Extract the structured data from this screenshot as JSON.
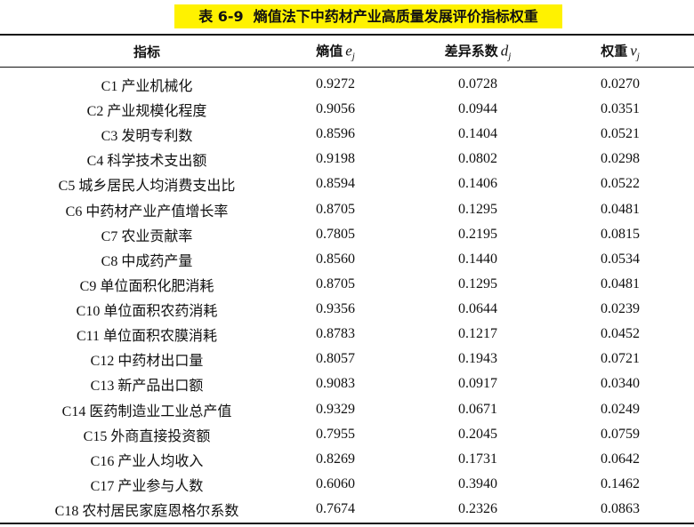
{
  "table": {
    "title": "表 6-9  熵值法下中药材产业高质量发展评价指标权重",
    "header": [
      {
        "text": "指标"
      },
      {
        "text": "熵值",
        "var": "e",
        "sub": "j"
      },
      {
        "text": "差异系数",
        "var": "d",
        "sub": "j"
      },
      {
        "text": "权重",
        "var": "v",
        "sub": "j"
      }
    ],
    "rows": [
      [
        "C1 产业机械化",
        "0.9272",
        "0.0728",
        "0.0270"
      ],
      [
        "C2 产业规模化程度",
        "0.9056",
        "0.0944",
        "0.0351"
      ],
      [
        "C3 发明专利数",
        "0.8596",
        "0.1404",
        "0.0521"
      ],
      [
        "C4 科学技术支出额",
        "0.9198",
        "0.0802",
        "0.0298"
      ],
      [
        "C5 城乡居民人均消费支出比",
        "0.8594",
        "0.1406",
        "0.0522"
      ],
      [
        "C6 中药材产业产值增长率",
        "0.8705",
        "0.1295",
        "0.0481"
      ],
      [
        "C7 农业贡献率",
        "0.7805",
        "0.2195",
        "0.0815"
      ],
      [
        "C8 中成药产量",
        "0.8560",
        "0.1440",
        "0.0534"
      ],
      [
        "C9 单位面积化肥消耗",
        "0.8705",
        "0.1295",
        "0.0481"
      ],
      [
        "C10 单位面积农药消耗",
        "0.9356",
        "0.0644",
        "0.0239"
      ],
      [
        "C11 单位面积农膜消耗",
        "0.8783",
        "0.1217",
        "0.0452"
      ],
      [
        "C12 中药材出口量",
        "0.8057",
        "0.1943",
        "0.0721"
      ],
      [
        "C13 新产品出口额",
        "0.9083",
        "0.0917",
        "0.0340"
      ],
      [
        "C14 医药制造业工业总产值",
        "0.9329",
        "0.0671",
        "0.0249"
      ],
      [
        "C15 外商直接投资额",
        "0.7955",
        "0.2045",
        "0.0759"
      ],
      [
        "C16 产业人均收入",
        "0.8269",
        "0.1731",
        "0.0642"
      ],
      [
        "C17 产业参与人数",
        "0.6060",
        "0.3940",
        "0.1462"
      ],
      [
        "C18 农村居民家庭恩格尔系数",
        "0.7674",
        "0.2326",
        "0.0863"
      ]
    ]
  }
}
